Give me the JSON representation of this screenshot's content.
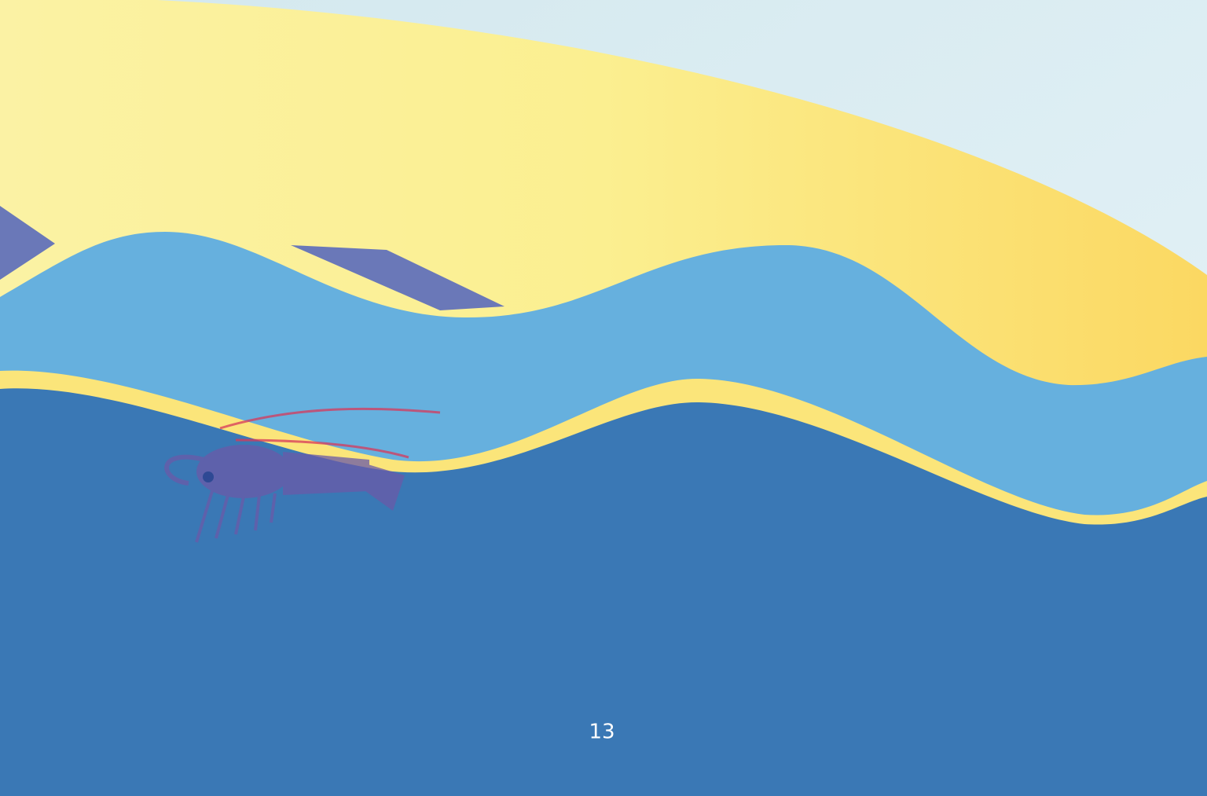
{
  "page_number": 13
}
